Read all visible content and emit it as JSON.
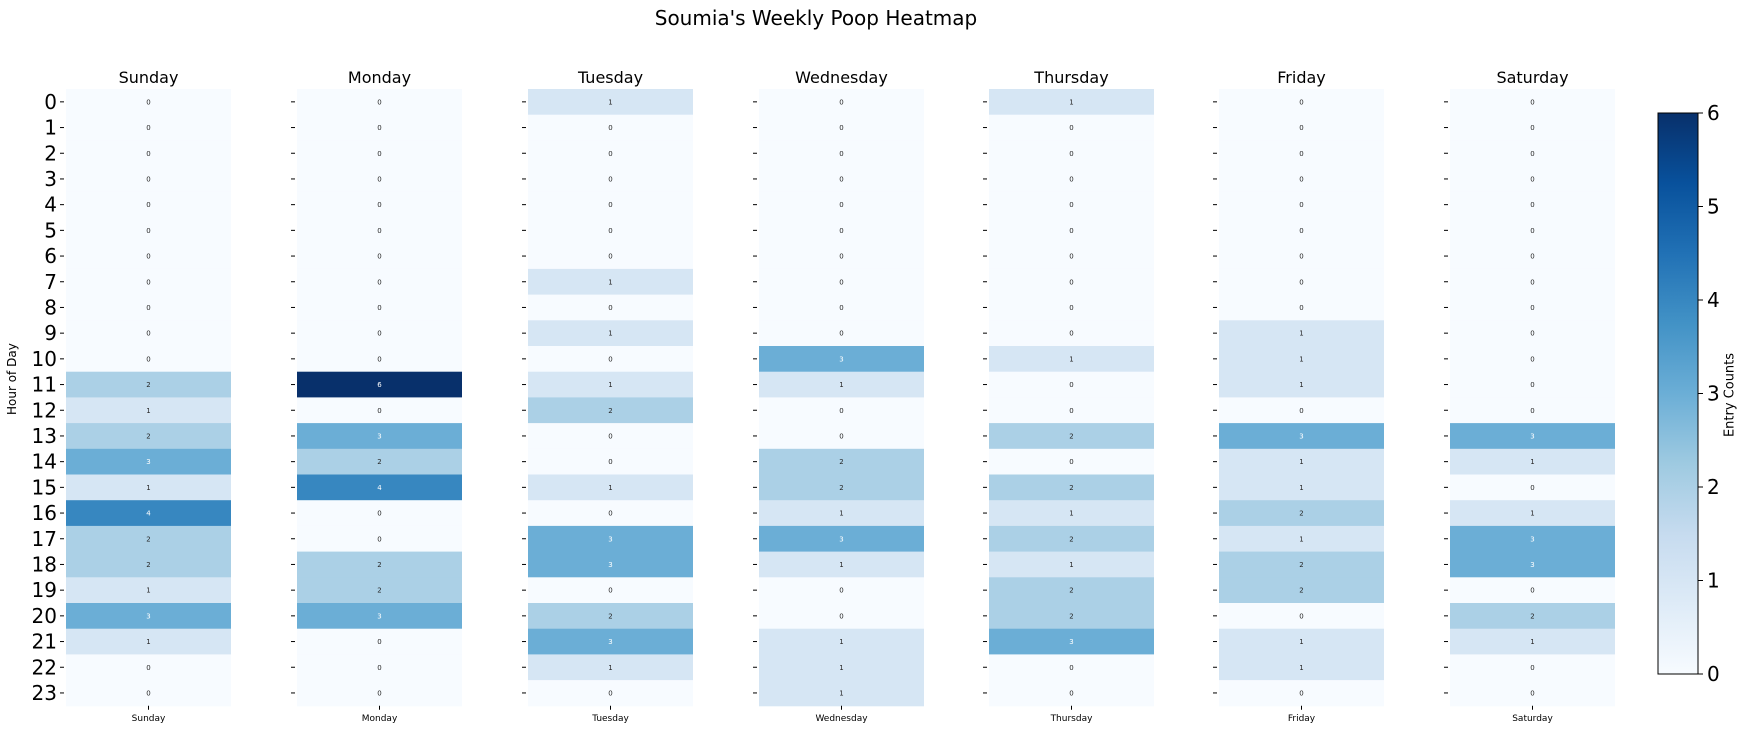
{
  "title": "Soumia's Weekly Poop Heatmap",
  "ylabel": "Hour of Day",
  "colorbar": {
    "label": "Entry Counts",
    "min": 0,
    "max": 6,
    "ticks": [
      "0",
      "1",
      "2",
      "3",
      "4",
      "5",
      "6"
    ]
  },
  "colormap": [
    "#f7fbff",
    "#deebf7",
    "#c6dbef",
    "#9ecae1",
    "#6baed6",
    "#4292c6",
    "#2171b5",
    "#08519c",
    "#08306b"
  ],
  "chart_data": {
    "type": "heatmap",
    "title": "Soumia's Weekly Poop Heatmap",
    "ylabel": "Hour of Day",
    "hours": [
      "0",
      "1",
      "2",
      "3",
      "4",
      "5",
      "6",
      "7",
      "8",
      "9",
      "10",
      "11",
      "12",
      "13",
      "14",
      "15",
      "16",
      "17",
      "18",
      "19",
      "20",
      "21",
      "22",
      "23"
    ],
    "days": [
      {
        "name": "Sunday",
        "values": [
          0,
          0,
          0,
          0,
          0,
          0,
          0,
          0,
          0,
          0,
          0,
          2,
          1,
          2,
          3,
          1,
          4,
          2,
          2,
          1,
          3,
          1,
          0,
          0
        ]
      },
      {
        "name": "Monday",
        "values": [
          0,
          0,
          0,
          0,
          0,
          0,
          0,
          0,
          0,
          0,
          0,
          6,
          0,
          3,
          2,
          4,
          0,
          0,
          2,
          2,
          3,
          0,
          0,
          0
        ]
      },
      {
        "name": "Tuesday",
        "values": [
          1,
          0,
          0,
          0,
          0,
          0,
          0,
          1,
          0,
          1,
          0,
          1,
          2,
          0,
          0,
          1,
          0,
          3,
          3,
          0,
          2,
          3,
          1,
          0
        ]
      },
      {
        "name": "Wednesday",
        "values": [
          0,
          0,
          0,
          0,
          0,
          0,
          0,
          0,
          0,
          0,
          3,
          1,
          0,
          0,
          2,
          2,
          1,
          3,
          1,
          0,
          0,
          1,
          1,
          1
        ]
      },
      {
        "name": "Thursday",
        "values": [
          1,
          0,
          0,
          0,
          0,
          0,
          0,
          0,
          0,
          0,
          1,
          0,
          0,
          2,
          0,
          2,
          1,
          2,
          1,
          2,
          2,
          3,
          0,
          0
        ]
      },
      {
        "name": "Friday",
        "values": [
          0,
          0,
          0,
          0,
          0,
          0,
          0,
          0,
          0,
          1,
          1,
          1,
          0,
          3,
          1,
          1,
          2,
          1,
          2,
          2,
          0,
          1,
          1,
          0
        ]
      },
      {
        "name": "Saturday",
        "values": [
          0,
          0,
          0,
          0,
          0,
          0,
          0,
          0,
          0,
          0,
          0,
          0,
          0,
          3,
          1,
          0,
          1,
          3,
          3,
          0,
          2,
          1,
          0,
          0
        ]
      }
    ]
  }
}
